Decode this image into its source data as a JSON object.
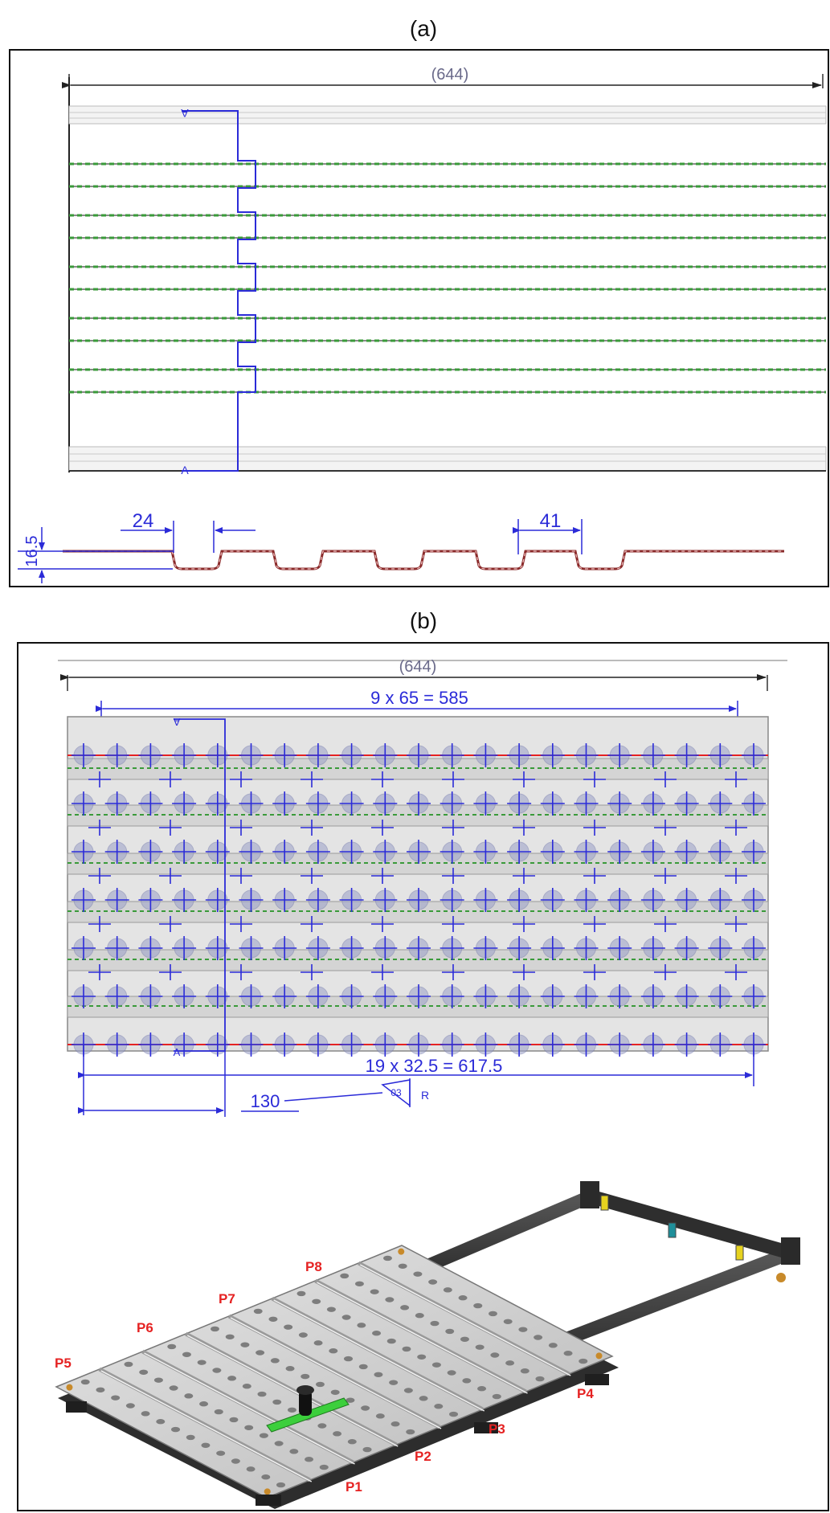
{
  "panel_a": {
    "caption": "(a)",
    "overall_dim": "(644)",
    "dim_pitch_small": "24",
    "dim_pitch_large": "41",
    "dim_height": "16.5"
  },
  "panel_b": {
    "caption": "(b)",
    "overall_dim": "(644)",
    "dim_top": "9 x 65 = 585",
    "dim_bottom": "19 x 32.5 = 617.5",
    "dim_offset": "130",
    "weld_tag": "03",
    "weld_side": "R",
    "section_mark": "A",
    "positions": [
      "P1",
      "P2",
      "P3",
      "P4",
      "P5",
      "P6",
      "P7",
      "P8"
    ]
  },
  "colors": {
    "dimension": "#2b2bd8",
    "rib_green": "#3a9a3a",
    "weld_red": "#e52222",
    "frame_dark": "#3a3a3a",
    "plate_grey": "#c8c8c8"
  }
}
